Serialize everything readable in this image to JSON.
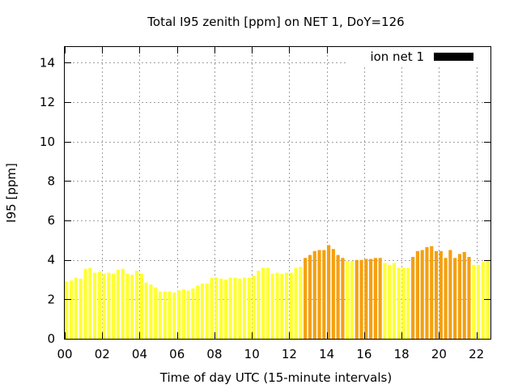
{
  "chart_data": {
    "type": "bar",
    "title": "Total I95 zenith [ppm] on NET 1, DoY=126",
    "xlabel": "Time of day UTC (15-minute intervals)",
    "ylabel": "I95 [ppm]",
    "ylim": [
      0,
      14.8
    ],
    "xlim": [
      0,
      22.75
    ],
    "yticks": [
      0,
      2,
      4,
      6,
      8,
      10,
      12,
      14
    ],
    "xticks": [
      "00",
      "02",
      "04",
      "06",
      "08",
      "10",
      "12",
      "14",
      "16",
      "18",
      "20",
      "22"
    ],
    "xtick_hours": [
      0,
      2,
      4,
      6,
      8,
      10,
      12,
      14,
      16,
      18,
      20,
      22
    ],
    "grid": true,
    "legend_position": "top-right",
    "legend_entry": "ion net 1",
    "bin_hours": 0.25,
    "colors": {
      "low": "#ffff33",
      "high": "#f5a00f",
      "legend_swatch": "#000000"
    },
    "high_threshold": 4.0,
    "values": [
      2.9,
      2.95,
      3.1,
      3.05,
      3.55,
      3.6,
      3.35,
      3.4,
      3.3,
      3.35,
      3.3,
      3.5,
      3.55,
      3.3,
      3.25,
      3.45,
      3.3,
      2.85,
      2.75,
      2.6,
      2.4,
      2.4,
      2.4,
      2.35,
      2.45,
      2.5,
      2.45,
      2.55,
      2.7,
      2.8,
      2.8,
      3.1,
      3.1,
      3.05,
      3.0,
      3.1,
      3.1,
      3.05,
      3.1,
      3.1,
      3.2,
      3.45,
      3.6,
      3.6,
      3.3,
      3.35,
      3.3,
      3.35,
      3.35,
      3.6,
      3.65,
      4.1,
      4.25,
      4.45,
      4.5,
      4.5,
      4.75,
      4.55,
      4.25,
      4.1,
      3.95,
      3.95,
      4.0,
      4.0,
      4.05,
      4.05,
      4.1,
      4.1,
      3.85,
      3.75,
      3.85,
      3.6,
      3.6,
      3.6,
      4.15,
      4.45,
      4.5,
      4.65,
      4.7,
      4.45,
      4.45,
      4.1,
      4.5,
      4.1,
      4.3,
      4.4,
      4.15,
      3.75,
      3.75,
      3.9,
      3.95
    ]
  }
}
